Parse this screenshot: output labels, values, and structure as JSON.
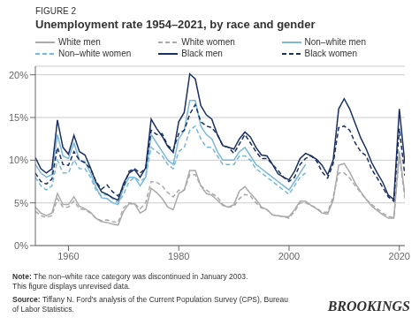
{
  "chart_data": {
    "type": "line",
    "title": "Unemployment rate 1954–2021, by race and gender",
    "subtitle": "FIGURE 2",
    "x": [
      1954,
      1955,
      1956,
      1957,
      1958,
      1959,
      1960,
      1961,
      1962,
      1963,
      1964,
      1965,
      1966,
      1967,
      1968,
      1969,
      1970,
      1971,
      1972,
      1973,
      1974,
      1975,
      1976,
      1977,
      1978,
      1979,
      1980,
      1981,
      1982,
      1983,
      1984,
      1985,
      1986,
      1987,
      1988,
      1989,
      1990,
      1991,
      1992,
      1993,
      1994,
      1995,
      1996,
      1997,
      1998,
      1999,
      2000,
      2001,
      2002,
      2003,
      2004,
      2005,
      2006,
      2007,
      2008,
      2009,
      2010,
      2011,
      2012,
      2013,
      2014,
      2015,
      2016,
      2017,
      2018,
      2019,
      2020,
      2021
    ],
    "series": [
      {
        "name": "White men",
        "color": "#aaaaaa",
        "line_style": "solid",
        "values": [
          4.5,
          3.8,
          3.5,
          3.8,
          6.1,
          4.8,
          4.8,
          5.7,
          4.6,
          4.3,
          3.9,
          3.2,
          2.8,
          2.7,
          2.5,
          2.4,
          4.0,
          4.9,
          4.9,
          3.8,
          4.2,
          6.7,
          6.2,
          5.5,
          4.5,
          4.2,
          6.1,
          6.5,
          8.8,
          8.8,
          7.0,
          6.1,
          5.9,
          5.3,
          4.7,
          4.5,
          4.8,
          6.4,
          6.9,
          6.1,
          5.4,
          4.5,
          4.2,
          3.6,
          3.5,
          3.4,
          3.4,
          4.2,
          5.2,
          5.2,
          4.7,
          4.3,
          3.8,
          3.7,
          5.3,
          9.4,
          9.6,
          8.6,
          7.3,
          6.3,
          5.4,
          4.6,
          4.1,
          3.6,
          3.2,
          3.2,
          11.0,
          6.0
        ]
      },
      {
        "name": "White women",
        "color": "#aaaaaa",
        "line_style": "dashed",
        "values": [
          4.0,
          3.5,
          3.3,
          3.5,
          5.5,
          4.5,
          4.5,
          5.2,
          4.3,
          4.2,
          3.8,
          3.2,
          2.9,
          3.0,
          2.8,
          2.7,
          4.4,
          5.0,
          4.9,
          4.3,
          5.0,
          7.5,
          7.4,
          7.0,
          6.2,
          5.7,
          6.5,
          6.5,
          8.3,
          8.3,
          7.0,
          6.5,
          6.1,
          5.7,
          4.8,
          4.5,
          4.6,
          5.5,
          6.0,
          5.8,
          5.0,
          4.4,
          4.2,
          3.6,
          3.5,
          3.4,
          3.2,
          4.0,
          5.0,
          5.0,
          4.7,
          4.4,
          3.9,
          3.9,
          5.7,
          8.5,
          8.5,
          7.9,
          7.0,
          6.2,
          5.4,
          4.8,
          4.3,
          3.8,
          3.4,
          3.3,
          10.5,
          5.5
        ]
      },
      {
        "name": "Non–white men",
        "color": "#7ab8d9",
        "line_style": "solid",
        "values": [
          9.5,
          8.5,
          8.0,
          8.3,
          13.0,
          10.5,
          10.2,
          12.0,
          10.0,
          9.8,
          8.5,
          6.8,
          5.6,
          5.5,
          5.0,
          4.8,
          6.8,
          8.0,
          8.0,
          7.0,
          8.0,
          13.0,
          12.0,
          11.0,
          10.0,
          9.5,
          12.5,
          13.5,
          17.0,
          17.0,
          14.0,
          13.0,
          12.5,
          11.0,
          10.0,
          10.0,
          10.0,
          11.0,
          11.5,
          10.5,
          9.5,
          9.0,
          8.5,
          8.0,
          7.5,
          7.0,
          6.5,
          7.5,
          8.5,
          9.5,
          null,
          null,
          null,
          null,
          null,
          null,
          null,
          null,
          null,
          null,
          null,
          null,
          null,
          null,
          null,
          null,
          null,
          null
        ]
      },
      {
        "name": "Non–white women",
        "color": "#7ab8d9",
        "line_style": "dashed",
        "values": [
          8.0,
          7.0,
          6.5,
          7.0,
          10.0,
          8.5,
          8.5,
          10.0,
          9.0,
          9.0,
          8.0,
          6.5,
          5.8,
          6.0,
          5.5,
          5.0,
          6.0,
          7.5,
          8.0,
          7.5,
          8.0,
          11.5,
          11.0,
          10.5,
          9.5,
          9.0,
          11.0,
          11.5,
          13.5,
          14.0,
          12.5,
          11.5,
          11.5,
          10.5,
          9.5,
          9.5,
          9.5,
          10.5,
          10.5,
          10.0,
          9.0,
          8.5,
          8.0,
          7.5,
          7.0,
          6.5,
          6.0,
          7.0,
          8.0,
          8.5,
          null,
          null,
          null,
          null,
          null,
          null,
          null,
          null,
          null,
          null,
          null,
          null,
          null,
          null,
          null,
          null,
          null,
          null
        ]
      },
      {
        "name": "Black men",
        "color": "#1a3060",
        "line_style": "solid",
        "values": [
          10.3,
          9.0,
          8.5,
          9.0,
          14.7,
          11.5,
          10.7,
          12.9,
          11.0,
          10.6,
          9.1,
          7.4,
          6.3,
          6.0,
          5.6,
          5.3,
          7.3,
          8.5,
          8.9,
          8.0,
          9.1,
          14.8,
          13.7,
          12.8,
          11.6,
          10.9,
          14.5,
          15.6,
          20.1,
          19.5,
          16.4,
          15.3,
          14.8,
          13.0,
          11.7,
          11.5,
          11.3,
          12.5,
          13.3,
          12.7,
          11.5,
          10.6,
          10.5,
          9.5,
          8.4,
          8.0,
          7.7,
          8.7,
          10.2,
          10.8,
          10.5,
          10.1,
          9.4,
          8.3,
          10.0,
          16.0,
          17.2,
          16.0,
          14.3,
          12.6,
          11.3,
          9.7,
          8.5,
          7.4,
          5.9,
          5.4,
          16.0,
          9.6
        ]
      },
      {
        "name": "Black women",
        "color": "#1a3060",
        "line_style": "dashed",
        "values": [
          8.5,
          7.5,
          7.2,
          7.8,
          11.5,
          9.5,
          9.4,
          11.0,
          10.0,
          9.7,
          9.0,
          7.5,
          6.6,
          7.1,
          6.3,
          5.8,
          6.9,
          8.7,
          9.0,
          8.5,
          9.0,
          13.5,
          13.0,
          13.1,
          11.7,
          11.2,
          13.1,
          13.5,
          15.4,
          16.5,
          14.5,
          14.0,
          13.8,
          13.0,
          11.7,
          11.5,
          10.8,
          11.9,
          13.0,
          12.0,
          11.0,
          10.2,
          10.2,
          9.5,
          8.8,
          8.0,
          7.5,
          8.0,
          9.5,
          10.2,
          10.5,
          9.9,
          8.6,
          7.9,
          9.6,
          13.8,
          14.0,
          13.5,
          12.0,
          11.0,
          10.5,
          8.9,
          7.9,
          6.8,
          5.7,
          5.2,
          13.7,
          8.2
        ]
      }
    ],
    "xlim": [
      1954,
      2021
    ],
    "xticks": [
      1960,
      1980,
      2000,
      2020
    ],
    "ylim": [
      0,
      21
    ],
    "yticks": [
      {
        "value": 0,
        "label": "0%"
      },
      {
        "value": 5,
        "label": "5%"
      },
      {
        "value": 10,
        "label": "10%"
      },
      {
        "value": 15,
        "label": "15%"
      },
      {
        "value": 20,
        "label": "20%"
      }
    ],
    "grid": true,
    "annotations": [
      {
        "label": "Note:",
        "text": "The non–white race category was discontinued in January 2003.\nThis figure displays unrevised data."
      },
      {
        "label": "Source:",
        "text": "Tiffany N. Ford’s analysis of the Current Population Survey (CPS), Bureau\nof Labor Statistics."
      },
      {
        "text": "BROOKINGS"
      }
    ]
  }
}
